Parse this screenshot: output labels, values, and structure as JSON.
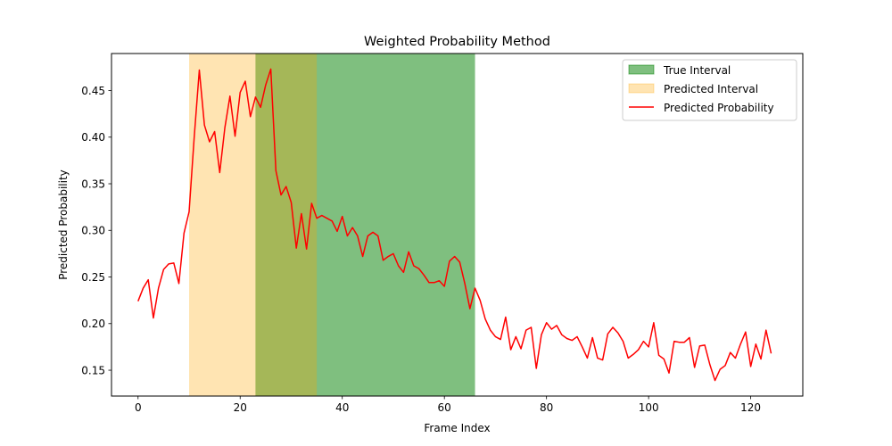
{
  "chart_data": {
    "type": "line",
    "title": "Weighted Probability Method",
    "xlabel": "Frame Index",
    "ylabel": "Predicted Probability",
    "xlim": [
      -5.2,
      130.2
    ],
    "ylim": [
      0.1223,
      0.4897
    ],
    "xticks": [
      0,
      20,
      40,
      60,
      80,
      100,
      120
    ],
    "yticks": [
      0.15,
      0.2,
      0.25,
      0.3,
      0.35,
      0.4,
      0.45
    ],
    "xtick_labels": [
      "0",
      "20",
      "40",
      "60",
      "80",
      "100",
      "120"
    ],
    "ytick_labels": [
      "0.15",
      "0.20",
      "0.25",
      "0.30",
      "0.35",
      "0.40",
      "0.45"
    ],
    "grid": false,
    "legend_position": "top-right",
    "legend": [
      "True Interval",
      "Predicted Interval",
      "Predicted Probability"
    ],
    "intervals": [
      {
        "name": "True Interval",
        "start": 23,
        "end": 66,
        "color": "#008000",
        "alpha": 0.5
      },
      {
        "name": "Predicted Interval",
        "start": 10,
        "end": 35,
        "color": "#ffa500",
        "alpha": 0.3
      }
    ],
    "series": [
      {
        "name": "Predicted Probability",
        "color": "#ff0000",
        "x": [
          0,
          1,
          2,
          3,
          4,
          5,
          6,
          7,
          8,
          9,
          10,
          11,
          12,
          13,
          14,
          15,
          16,
          17,
          18,
          19,
          20,
          21,
          22,
          23,
          24,
          25,
          26,
          27,
          28,
          29,
          30,
          31,
          32,
          33,
          34,
          35,
          36,
          37,
          38,
          39,
          40,
          41,
          42,
          43,
          44,
          45,
          46,
          47,
          48,
          49,
          50,
          51,
          52,
          53,
          54,
          55,
          56,
          57,
          58,
          59,
          60,
          61,
          62,
          63,
          64,
          65,
          66,
          67,
          68,
          69,
          70,
          71,
          72,
          73,
          74,
          75,
          76,
          77,
          78,
          79,
          80,
          81,
          82,
          83,
          84,
          85,
          86,
          87,
          88,
          89,
          90,
          91,
          92,
          93,
          94,
          95,
          96,
          97,
          98,
          99,
          100,
          101,
          102,
          103,
          104,
          105,
          106,
          107,
          108,
          109,
          110,
          111,
          112,
          113,
          114,
          115,
          116,
          117,
          118,
          119,
          120,
          121,
          122,
          123,
          124
        ],
        "values": [
          0.224,
          0.238,
          0.247,
          0.206,
          0.238,
          0.258,
          0.264,
          0.265,
          0.243,
          0.297,
          0.32,
          0.4,
          0.472,
          0.413,
          0.395,
          0.406,
          0.362,
          0.41,
          0.444,
          0.401,
          0.448,
          0.46,
          0.422,
          0.443,
          0.432,
          0.456,
          0.473,
          0.364,
          0.338,
          0.347,
          0.33,
          0.281,
          0.318,
          0.28,
          0.329,
          0.313,
          0.316,
          0.313,
          0.31,
          0.299,
          0.315,
          0.294,
          0.303,
          0.294,
          0.272,
          0.294,
          0.298,
          0.294,
          0.268,
          0.272,
          0.275,
          0.262,
          0.255,
          0.277,
          0.262,
          0.259,
          0.252,
          0.244,
          0.244,
          0.246,
          0.24,
          0.267,
          0.272,
          0.266,
          0.243,
          0.216,
          0.238,
          0.225,
          0.205,
          0.193,
          0.186,
          0.183,
          0.207,
          0.172,
          0.186,
          0.173,
          0.193,
          0.196,
          0.152,
          0.188,
          0.201,
          0.194,
          0.198,
          0.188,
          0.184,
          0.182,
          0.186,
          0.175,
          0.163,
          0.185,
          0.163,
          0.161,
          0.189,
          0.196,
          0.19,
          0.181,
          0.163,
          0.167,
          0.172,
          0.181,
          0.175,
          0.201,
          0.166,
          0.162,
          0.147,
          0.181,
          0.18,
          0.18,
          0.185,
          0.153,
          0.176,
          0.177,
          0.156,
          0.139,
          0.151,
          0.155,
          0.169,
          0.163,
          0.178,
          0.191,
          0.154,
          0.178,
          0.162,
          0.193,
          0.168
        ]
      }
    ]
  }
}
